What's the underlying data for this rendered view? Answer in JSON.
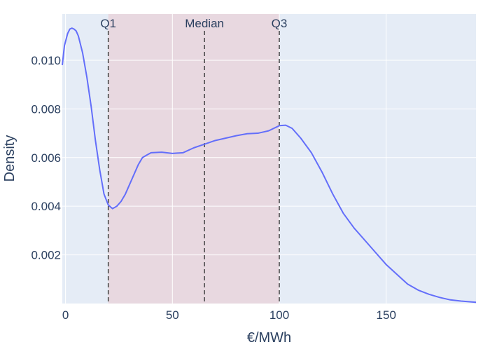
{
  "chart_data": {
    "type": "area",
    "title": "",
    "xlabel": "€/MWh",
    "ylabel": "Density",
    "xlim": [
      -1.5,
      192
    ],
    "ylim": [
      0,
      0.0119
    ],
    "x_ticks": [
      0,
      50,
      100,
      150
    ],
    "y_ticks": [
      0.002,
      0.004,
      0.006,
      0.008,
      0.01
    ],
    "y_tick_labels": [
      "0.002",
      "0.004",
      "0.006",
      "0.008",
      "0.010"
    ],
    "grid": true,
    "legend": "none",
    "iqr_band": {
      "from": 20,
      "to": 100
    },
    "reference_lines": [
      {
        "label": "Q1",
        "x": 20
      },
      {
        "label": "Median",
        "x": 65
      },
      {
        "label": "Q3",
        "x": 100
      }
    ],
    "series": [
      {
        "x": [
          -1.5,
          -0.5,
          1,
          2,
          3,
          4,
          5,
          6,
          8,
          10,
          12,
          14,
          16,
          18,
          20,
          22,
          24,
          26,
          28,
          30,
          32,
          34,
          36,
          38,
          40,
          45,
          50,
          55,
          60,
          65,
          70,
          75,
          80,
          85,
          90,
          95,
          100,
          103,
          106,
          110,
          115,
          120,
          125,
          130,
          135,
          140,
          145,
          150,
          155,
          160,
          165,
          170,
          175,
          180,
          185,
          192
        ],
        "y": [
          0.0098,
          0.0106,
          0.0111,
          0.01128,
          0.01132,
          0.01128,
          0.0112,
          0.011,
          0.0103,
          0.0093,
          0.0081,
          0.0067,
          0.0055,
          0.0045,
          0.00405,
          0.0039,
          0.004,
          0.0042,
          0.0045,
          0.0049,
          0.0053,
          0.0057,
          0.006,
          0.0061,
          0.0062,
          0.00622,
          0.00617,
          0.0062,
          0.0064,
          0.00655,
          0.0067,
          0.0068,
          0.0069,
          0.00698,
          0.007,
          0.0071,
          0.00731,
          0.00733,
          0.0072,
          0.0068,
          0.0062,
          0.0054,
          0.0045,
          0.0037,
          0.0031,
          0.0026,
          0.0021,
          0.0016,
          0.0012,
          0.0008,
          0.00055,
          0.00038,
          0.00025,
          0.00015,
          0.0001,
          5e-05
        ],
        "color": "#636efa"
      }
    ],
    "colors": {
      "plot_bg": "#e5ecf6",
      "band": "#e8d8e0",
      "grid": "#ffffff",
      "line": "#636efa",
      "ref_line": "#444444",
      "text": "#2a3f5f"
    }
  }
}
